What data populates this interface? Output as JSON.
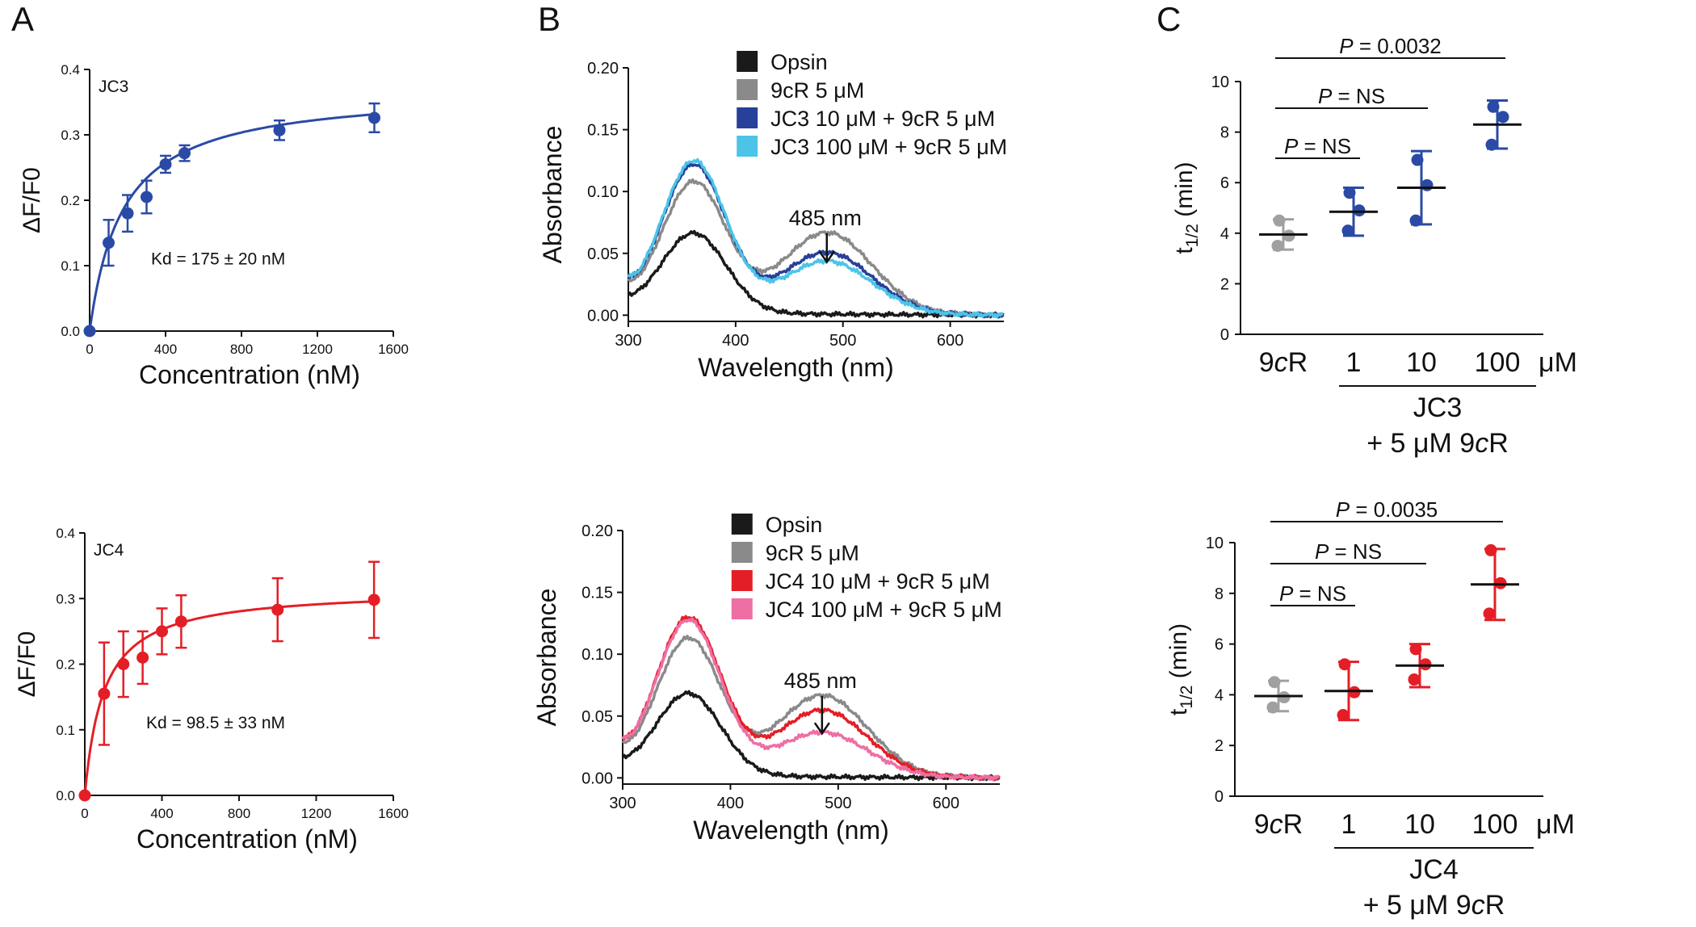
{
  "panel_labels": [
    "A",
    "B",
    "C"
  ],
  "chart_data": [
    {
      "id": "A-JC3",
      "type": "scatter",
      "fit": "hyperbolic",
      "label": "JC3",
      "color": "#2a4aa6",
      "xlabel": "Concentration (nM)",
      "ylabel": "ΔF/F0",
      "xlim": [
        0,
        1600
      ],
      "ylim": [
        0,
        0.4
      ],
      "xticks": [
        0,
        400,
        800,
        1200,
        1600
      ],
      "yticks": [
        0.0,
        0.1,
        0.2,
        0.3,
        0.4
      ],
      "ytick_decimals": 1,
      "points": [
        {
          "x": 0,
          "y": 0.0,
          "err": 0.0
        },
        {
          "x": 100,
          "y": 0.135,
          "err": 0.035
        },
        {
          "x": 200,
          "y": 0.18,
          "err": 0.028
        },
        {
          "x": 300,
          "y": 0.205,
          "err": 0.025
        },
        {
          "x": 400,
          "y": 0.255,
          "err": 0.013
        },
        {
          "x": 500,
          "y": 0.272,
          "err": 0.012
        },
        {
          "x": 1000,
          "y": 0.307,
          "err": 0.015
        },
        {
          "x": 1500,
          "y": 0.326,
          "err": 0.022
        }
      ],
      "fit_params": {
        "bmax": 0.37,
        "kd": 175
      },
      "annotation": "Kd = 175 ± 20 nM"
    },
    {
      "id": "A-JC4",
      "type": "scatter",
      "fit": "hyperbolic",
      "label": "JC4",
      "color": "#e41e26",
      "xlabel": "Concentration (nM)",
      "ylabel": "ΔF/F0",
      "xlim": [
        0,
        1600
      ],
      "ylim": [
        0,
        0.4
      ],
      "xticks": [
        0,
        400,
        800,
        1200,
        1600
      ],
      "yticks": [
        0.0,
        0.1,
        0.2,
        0.3,
        0.4
      ],
      "ytick_decimals": 1,
      "points": [
        {
          "x": 0,
          "y": 0.0,
          "err": 0.0
        },
        {
          "x": 100,
          "y": 0.155,
          "err": 0.078
        },
        {
          "x": 200,
          "y": 0.2,
          "err": 0.05
        },
        {
          "x": 300,
          "y": 0.21,
          "err": 0.04
        },
        {
          "x": 400,
          "y": 0.25,
          "err": 0.035
        },
        {
          "x": 500,
          "y": 0.265,
          "err": 0.04
        },
        {
          "x": 1000,
          "y": 0.283,
          "err": 0.048
        },
        {
          "x": 1500,
          "y": 0.298,
          "err": 0.058
        }
      ],
      "fit_params": {
        "bmax": 0.315,
        "kd": 98.5
      },
      "annotation": "Kd = 98.5 ± 33 nM"
    },
    {
      "id": "B-JC3",
      "type": "line",
      "xlabel": "Wavelength (nm)",
      "ylabel": "Absorbance",
      "xlim": [
        300,
        650
      ],
      "ylim": [
        -0.005,
        0.2
      ],
      "xticks": [
        300,
        400,
        500,
        600
      ],
      "yticks": [
        0.0,
        0.05,
        0.1,
        0.15,
        0.2
      ],
      "ytick_decimals": 2,
      "annotation": "485 nm",
      "arrow": {
        "x": 485,
        "y_from": 0.065,
        "y_to": 0.043
      },
      "series": [
        {
          "name": "Opsin",
          "color": "#1a1a1a",
          "a0": 0.066,
          "ag": 0.064,
          "ac": 0.0,
          "aj": 0.005
        },
        {
          "name": "9cR 5 μM",
          "color": "#8a8a8a",
          "a0": 0.108,
          "ag": 0.105,
          "ac": 0.066,
          "aj": 0.012
        },
        {
          "name": "JC3 10 μM + 9cR 5 μM",
          "color": "#27409a",
          "a0": 0.121,
          "ag": 0.119,
          "ac": 0.05,
          "aj": 0.013
        },
        {
          "name": "JC3 100 μM + 9cR 5 μM",
          "color": "#4bc4e8",
          "a0": 0.123,
          "ag": 0.122,
          "ac": 0.043,
          "aj": 0.013
        }
      ]
    },
    {
      "id": "B-JC4",
      "type": "line",
      "xlabel": "Wavelength (nm)",
      "ylabel": "Absorbance",
      "xlim": [
        300,
        650
      ],
      "ylim": [
        -0.005,
        0.2
      ],
      "xticks": [
        300,
        400,
        500,
        600
      ],
      "yticks": [
        0.0,
        0.05,
        0.1,
        0.15,
        0.2
      ],
      "ytick_decimals": 2,
      "annotation": "485 nm",
      "arrow": {
        "x": 485,
        "y_from": 0.065,
        "y_to": 0.036
      },
      "series": [
        {
          "name": "Opsin",
          "color": "#1a1a1a",
          "a0": 0.068,
          "ag": 0.066,
          "ac": 0.0,
          "aj": 0.005
        },
        {
          "name": "9cR 5 μM",
          "color": "#8a8a8a",
          "a0": 0.11,
          "ag": 0.11,
          "ac": 0.066,
          "aj": 0.012
        },
        {
          "name": "JC4 10 μM + 9cR 5 μM",
          "color": "#e41e26",
          "a0": 0.122,
          "ag": 0.127,
          "ac": 0.054,
          "aj": 0.013
        },
        {
          "name": "JC4 100 μM + 9cR 5 μM",
          "color": "#ee6fa3",
          "a0": 0.14,
          "ag": 0.125,
          "ac": 0.036,
          "aj": 0.013
        }
      ]
    },
    {
      "id": "C-JC3",
      "type": "scatter",
      "ylabel": "t1/2 (min)",
      "ylim": [
        0,
        10
      ],
      "yticks": [
        0,
        2,
        4,
        6,
        8,
        10
      ],
      "categories": [
        "9cR",
        "1",
        "10",
        "100"
      ],
      "unit": "μM",
      "group_label": "JC3",
      "group_sub": "+ 5 μM 9cR",
      "groups": [
        {
          "mean": 3.95,
          "sd": 0.6,
          "color": "#a0a0a0",
          "points": [
            4.5,
            3.9,
            3.5
          ]
        },
        {
          "mean": 4.85,
          "sd": 0.95,
          "color": "#2a4aa6",
          "points": [
            5.6,
            4.9,
            4.1
          ]
        },
        {
          "mean": 5.8,
          "sd": 1.45,
          "color": "#2a4aa6",
          "points": [
            6.9,
            5.9,
            4.5
          ]
        },
        {
          "mean": 8.3,
          "sd": 0.95,
          "color": "#2a4aa6",
          "points": [
            9.0,
            8.6,
            7.5
          ]
        }
      ],
      "comparisons": [
        {
          "a": 0,
          "b": 3,
          "label": "P = 0.0032",
          "italic": "P",
          "rest": " = 0.0032"
        },
        {
          "a": 0,
          "b": 2,
          "label": "P = NS",
          "italic": "P",
          "rest": " = NS"
        },
        {
          "a": 0,
          "b": 1,
          "label": "P = NS",
          "italic": "P",
          "rest": " = NS"
        }
      ]
    },
    {
      "id": "C-JC4",
      "type": "scatter",
      "ylabel": "t1/2 (min)",
      "ylim": [
        0,
        10
      ],
      "yticks": [
        0,
        2,
        4,
        6,
        8,
        10
      ],
      "categories": [
        "9cR",
        "1",
        "10",
        "100"
      ],
      "unit": "μM",
      "group_label": "JC4",
      "group_sub": "+ 5 μM 9cR",
      "groups": [
        {
          "mean": 3.95,
          "sd": 0.6,
          "color": "#a0a0a0",
          "points": [
            4.5,
            3.9,
            3.5
          ]
        },
        {
          "mean": 4.15,
          "sd": 1.15,
          "color": "#e41e26",
          "points": [
            5.2,
            4.1,
            3.2
          ]
        },
        {
          "mean": 5.15,
          "sd": 0.85,
          "color": "#e41e26",
          "points": [
            5.8,
            5.2,
            4.6
          ]
        },
        {
          "mean": 8.35,
          "sd": 1.4,
          "color": "#e41e26",
          "points": [
            9.7,
            8.4,
            7.2
          ]
        }
      ],
      "comparisons": [
        {
          "a": 0,
          "b": 3,
          "label": "P = 0.0035",
          "italic": "P",
          "rest": " = 0.0035"
        },
        {
          "a": 0,
          "b": 2,
          "label": "P = NS",
          "italic": "P",
          "rest": " = NS"
        },
        {
          "a": 0,
          "b": 1,
          "label": "P = NS",
          "italic": "P",
          "rest": " = NS"
        }
      ]
    }
  ]
}
